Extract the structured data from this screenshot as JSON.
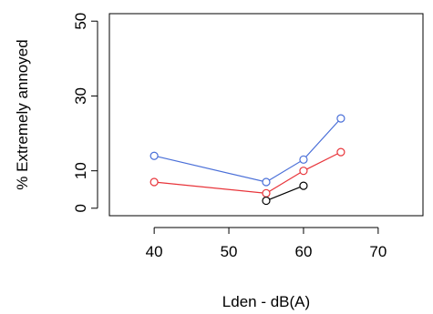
{
  "chart_data": {
    "type": "line",
    "xlabel": "Lden - dB(A)",
    "ylabel": "% Extremely annoyed",
    "xlim": [
      34,
      76
    ],
    "ylim": [
      -2,
      52
    ],
    "x_ticks": [
      "40",
      "50",
      "60",
      "70"
    ],
    "y_ticks": [
      "0",
      "10",
      "30",
      "50"
    ],
    "series": [
      {
        "color": "#4a6fd8",
        "x": [
          40,
          55,
          60,
          65
        ],
        "y": [
          14,
          7,
          13,
          24
        ]
      },
      {
        "color": "#e8343a",
        "x": [
          40,
          55,
          60,
          65
        ],
        "y": [
          7,
          4,
          10,
          15
        ]
      },
      {
        "color": "#000000",
        "x": [
          55,
          60
        ],
        "y": [
          2,
          6
        ]
      }
    ]
  }
}
